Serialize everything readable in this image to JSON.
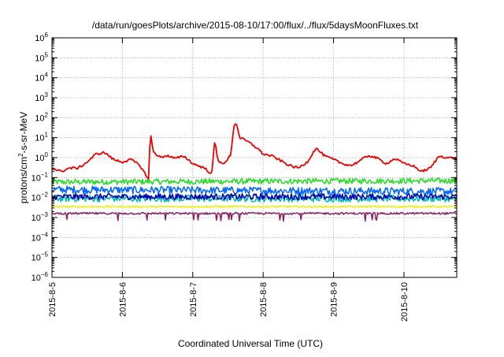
{
  "chart_data": {
    "type": "line",
    "title": "/data/run/goesPlots/archive/2015-08-10/17:00/flux/../flux/5daysMoonFluxes.txt",
    "xlabel": "Coordinated Universal Time (UTC)",
    "ylabel": "protons/cm²-s-sr-MeV",
    "ylabel_parts": [
      "protons/cm",
      "2",
      "-s-sr-MeV"
    ],
    "x_scale": "time",
    "y_scale": "log",
    "xlim": [
      "2015-08-05",
      "2015-08-10T18:00"
    ],
    "ylim": [
      1e-06,
      1000000.0
    ],
    "grid": true,
    "x_ticks": [
      "2015-8-5",
      "2015-8-6",
      "2015-8-7",
      "2015-8-8",
      "2015-8-9",
      "2015-8-10"
    ],
    "y_tick_exponents": [
      -6,
      -5,
      -4,
      -3,
      -2,
      -1,
      0,
      1,
      2,
      3,
      4,
      5,
      6
    ],
    "series": [
      {
        "color": "#ee0000",
        "keypoints": [
          [
            "2015-08-05T00:00",
            0.3
          ],
          [
            "2015-08-05T03:00",
            0.2
          ],
          [
            "2015-08-05T06:00",
            0.3
          ],
          [
            "2015-08-05T09:00",
            0.3
          ],
          [
            "2015-08-05T12:00",
            0.6
          ],
          [
            "2015-08-05T15:00",
            1.5
          ],
          [
            "2015-08-05T18:00",
            1.8
          ],
          [
            "2015-08-05T21:00",
            0.8
          ],
          [
            "2015-08-06T00:00",
            0.6
          ],
          [
            "2015-08-06T03:00",
            0.8
          ],
          [
            "2015-08-06T06:00",
            0.4
          ],
          [
            "2015-08-06T09:00",
            0.08
          ],
          [
            "2015-08-06T09:30",
            20
          ],
          [
            "2015-08-06T10:30",
            2
          ],
          [
            "2015-08-06T13:00",
            1.0
          ],
          [
            "2015-08-06T15:00",
            1.3
          ],
          [
            "2015-08-06T18:00",
            0.9
          ],
          [
            "2015-08-06T21:00",
            1.2
          ],
          [
            "2015-08-07T00:00",
            0.5
          ],
          [
            "2015-08-07T04:00",
            0.3
          ],
          [
            "2015-08-07T06:30",
            0.15
          ],
          [
            "2015-08-07T07:30",
            8
          ],
          [
            "2015-08-07T08:30",
            0.7
          ],
          [
            "2015-08-07T11:00",
            0.5
          ],
          [
            "2015-08-07T13:00",
            1.5
          ],
          [
            "2015-08-07T14:00",
            40
          ],
          [
            "2015-08-07T15:00",
            50
          ],
          [
            "2015-08-07T16:00",
            10
          ],
          [
            "2015-08-07T19:00",
            6
          ],
          [
            "2015-08-07T22:00",
            3
          ],
          [
            "2015-08-08T00:00",
            1.5
          ],
          [
            "2015-08-08T03:00",
            1.2
          ],
          [
            "2015-08-08T06:00",
            0.7
          ],
          [
            "2015-08-08T09:00",
            0.4
          ],
          [
            "2015-08-08T12:00",
            0.3
          ],
          [
            "2015-08-08T15:00",
            0.6
          ],
          [
            "2015-08-08T18:00",
            3
          ],
          [
            "2015-08-08T21:00",
            1.2
          ],
          [
            "2015-08-09T00:00",
            0.8
          ],
          [
            "2015-08-09T03:00",
            0.5
          ],
          [
            "2015-08-09T06:00",
            0.4
          ],
          [
            "2015-08-09T09:00",
            0.7
          ],
          [
            "2015-08-09T12:00",
            1.3
          ],
          [
            "2015-08-09T15:00",
            0.9
          ],
          [
            "2015-08-09T18:00",
            0.5
          ],
          [
            "2015-08-09T21:00",
            0.9
          ],
          [
            "2015-08-10T00:00",
            0.5
          ],
          [
            "2015-08-10T03:00",
            0.4
          ],
          [
            "2015-08-10T06:00",
            0.2
          ],
          [
            "2015-08-10T09:00",
            0.3
          ],
          [
            "2015-08-10T12:00",
            1.2
          ],
          [
            "2015-08-10T15:00",
            1.0
          ],
          [
            "2015-08-10T18:00",
            0.9
          ]
        ]
      },
      {
        "color": "#22dd22",
        "keypoints": [
          [
            "2015-08-05T00:00",
            0.06
          ],
          [
            "2015-08-10T18:00",
            0.07
          ]
        ]
      },
      {
        "color": "#0066ff",
        "keypoints": [
          [
            "2015-08-05T00:00",
            0.025
          ],
          [
            "2015-08-10T18:00",
            0.02
          ]
        ]
      },
      {
        "color": "#00bbbb",
        "keypoints": [
          [
            "2015-08-05T00:00",
            0.009
          ],
          [
            "2015-08-10T18:00",
            0.009
          ]
        ]
      },
      {
        "color": "#0000aa",
        "keypoints": [
          [
            "2015-08-05T00:00",
            0.011
          ],
          [
            "2015-08-10T18:00",
            0.011
          ]
        ]
      },
      {
        "color": "#eeee00",
        "keypoints": [
          [
            "2015-08-05T00:00",
            0.0035
          ],
          [
            "2015-08-10T18:00",
            0.0035
          ]
        ]
      },
      {
        "color": "#882266",
        "keypoints": [
          [
            "2015-08-05T00:00",
            0.0016
          ],
          [
            "2015-08-10T18:00",
            0.0016
          ]
        ]
      }
    ]
  }
}
